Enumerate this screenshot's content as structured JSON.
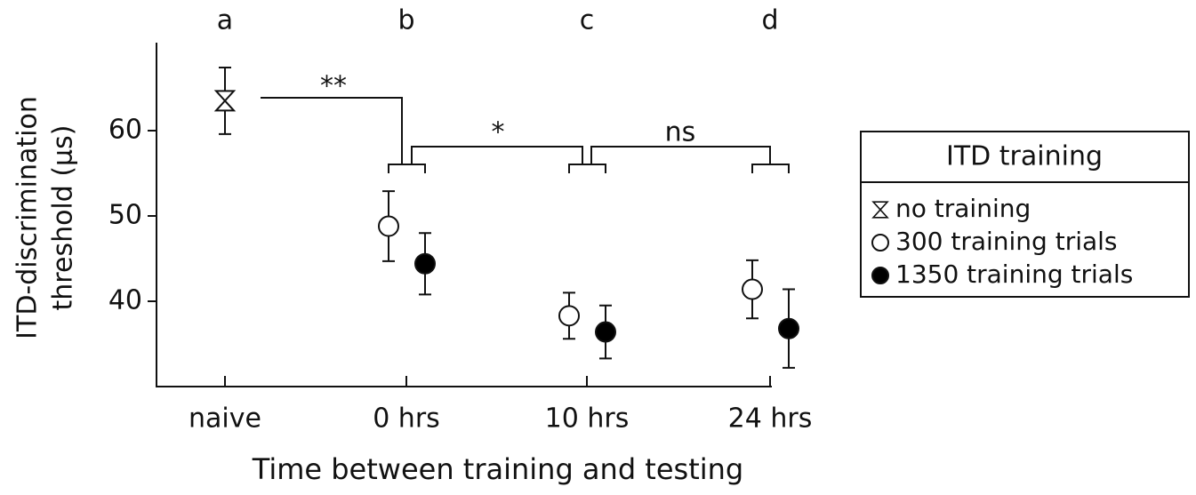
{
  "chart_data": {
    "type": "scatter",
    "categories": [
      "naive",
      "0 hrs",
      "10 hrs",
      "24 hrs"
    ],
    "category_letters": [
      "a",
      "b",
      "c",
      "d"
    ],
    "x_label": "Time between training and testing",
    "y_label": [
      "ITD-discrimination",
      "threshold (μs)"
    ],
    "ylim": [
      30,
      70
    ],
    "yticks": [
      40,
      50,
      60
    ],
    "legend_title": "ITD training",
    "legend_position": "right",
    "significance": [
      "**",
      "*",
      "ns"
    ],
    "series": [
      {
        "name": "no training",
        "marker": "hourglass",
        "color": "#ffffff",
        "values": [
          63.5,
          null,
          null,
          null
        ],
        "errors": [
          3.9,
          null,
          null,
          null
        ]
      },
      {
        "name": "300 training trials",
        "marker": "circle",
        "color": "#ffffff",
        "values": [
          null,
          48.8,
          38.3,
          41.4
        ],
        "errors": [
          null,
          4.1,
          2.7,
          3.4
        ]
      },
      {
        "name": "1350 training trials",
        "marker": "circle",
        "color": "#000000",
        "values": [
          null,
          44.4,
          36.4,
          36.8
        ],
        "errors": [
          null,
          3.6,
          3.1,
          4.6
        ]
      }
    ]
  }
}
